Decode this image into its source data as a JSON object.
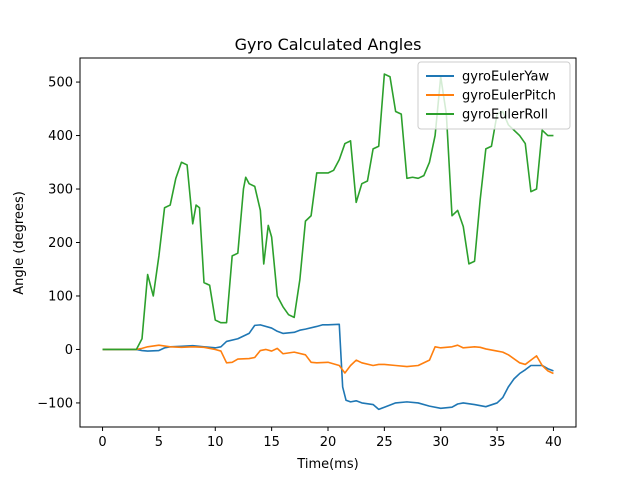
{
  "chart_data": {
    "type": "line",
    "title": "Gyro Calculated Angles",
    "xlabel": "Time(ms)",
    "ylabel": "Angle (degrees)",
    "xlim": [
      -2,
      42
    ],
    "ylim": [
      -145,
      545
    ],
    "xticks": [
      0,
      5,
      10,
      15,
      20,
      25,
      30,
      35,
      40
    ],
    "yticks": [
      -100,
      0,
      100,
      200,
      300,
      400,
      500
    ],
    "grid": false,
    "legend": "top-right",
    "series": [
      {
        "name": "gyroEulerYaw",
        "color": "#1f77b4",
        "points": [
          [
            0,
            0
          ],
          [
            3,
            0
          ],
          [
            3.5,
            -2
          ],
          [
            4,
            -3
          ],
          [
            5,
            -2
          ],
          [
            5.5,
            3
          ],
          [
            6,
            5
          ],
          [
            7,
            6
          ],
          [
            8,
            7
          ],
          [
            9,
            5
          ],
          [
            10,
            3
          ],
          [
            10.5,
            5
          ],
          [
            11,
            15
          ],
          [
            12,
            20
          ],
          [
            13,
            30
          ],
          [
            13.5,
            45
          ],
          [
            14,
            46
          ],
          [
            15,
            40
          ],
          [
            15.5,
            34
          ],
          [
            16,
            30
          ],
          [
            17,
            32
          ],
          [
            17.5,
            36
          ],
          [
            18,
            38
          ],
          [
            19,
            43
          ],
          [
            19.5,
            46
          ],
          [
            20,
            46
          ],
          [
            21,
            47
          ],
          [
            21.3,
            -70
          ],
          [
            21.6,
            -95
          ],
          [
            22,
            -98
          ],
          [
            22.5,
            -96
          ],
          [
            23,
            -100
          ],
          [
            24,
            -103
          ],
          [
            24.5,
            -112
          ],
          [
            25,
            -108
          ],
          [
            26,
            -100
          ],
          [
            27,
            -98
          ],
          [
            28,
            -100
          ],
          [
            29,
            -106
          ],
          [
            30,
            -110
          ],
          [
            31,
            -108
          ],
          [
            31.5,
            -102
          ],
          [
            32,
            -100
          ],
          [
            33,
            -103
          ],
          [
            34,
            -107
          ],
          [
            35,
            -100
          ],
          [
            35.5,
            -90
          ],
          [
            36,
            -70
          ],
          [
            36.5,
            -55
          ],
          [
            37,
            -45
          ],
          [
            37.5,
            -38
          ],
          [
            38,
            -30
          ],
          [
            39,
            -30
          ],
          [
            39.5,
            -36
          ],
          [
            40,
            -40
          ]
        ]
      },
      {
        "name": "gyroEulerPitch",
        "color": "#ff7f0e",
        "points": [
          [
            0,
            0
          ],
          [
            3,
            0
          ],
          [
            3.5,
            2
          ],
          [
            4,
            5
          ],
          [
            5,
            8
          ],
          [
            6,
            5
          ],
          [
            7,
            4
          ],
          [
            8,
            5
          ],
          [
            9,
            4
          ],
          [
            10,
            0
          ],
          [
            10.5,
            -3
          ],
          [
            11,
            -25
          ],
          [
            11.5,
            -24
          ],
          [
            12,
            -18
          ],
          [
            13,
            -17
          ],
          [
            13.5,
            -15
          ],
          [
            14,
            -2
          ],
          [
            14.5,
            0
          ],
          [
            15,
            -3
          ],
          [
            15.5,
            2
          ],
          [
            16,
            -8
          ],
          [
            17,
            -5
          ],
          [
            18,
            -10
          ],
          [
            18.5,
            -24
          ],
          [
            19,
            -25
          ],
          [
            20,
            -24
          ],
          [
            21,
            -30
          ],
          [
            21.5,
            -44
          ],
          [
            22,
            -30
          ],
          [
            22.5,
            -20
          ],
          [
            23,
            -25
          ],
          [
            24,
            -30
          ],
          [
            24.5,
            -28
          ],
          [
            25,
            -28
          ],
          [
            26,
            -30
          ],
          [
            27,
            -32
          ],
          [
            28,
            -30
          ],
          [
            29,
            -20
          ],
          [
            29.5,
            5
          ],
          [
            30,
            3
          ],
          [
            31,
            5
          ],
          [
            31.5,
            8
          ],
          [
            32,
            3
          ],
          [
            33,
            5
          ],
          [
            33.5,
            4
          ],
          [
            34,
            1
          ],
          [
            35,
            -3
          ],
          [
            35.5,
            -5
          ],
          [
            36,
            -10
          ],
          [
            37,
            -25
          ],
          [
            37.5,
            -28
          ],
          [
            38,
            -20
          ],
          [
            38.5,
            -12
          ],
          [
            39,
            -30
          ],
          [
            39.5,
            -40
          ],
          [
            40,
            -45
          ]
        ]
      },
      {
        "name": "gyroEulerRoll",
        "color": "#2ca02c",
        "points": [
          [
            0,
            0
          ],
          [
            3,
            0
          ],
          [
            3.5,
            20
          ],
          [
            4,
            140
          ],
          [
            4.5,
            100
          ],
          [
            5,
            175
          ],
          [
            5.5,
            265
          ],
          [
            6,
            270
          ],
          [
            6.5,
            320
          ],
          [
            7,
            350
          ],
          [
            7.5,
            345
          ],
          [
            8,
            235
          ],
          [
            8.3,
            270
          ],
          [
            8.6,
            265
          ],
          [
            9,
            125
          ],
          [
            9.5,
            120
          ],
          [
            10,
            55
          ],
          [
            10.5,
            50
          ],
          [
            11,
            50
          ],
          [
            11.5,
            175
          ],
          [
            12,
            180
          ],
          [
            12.5,
            300
          ],
          [
            12.7,
            322
          ],
          [
            13,
            310
          ],
          [
            13.5,
            305
          ],
          [
            14,
            260
          ],
          [
            14.3,
            160
          ],
          [
            14.7,
            232
          ],
          [
            15,
            210
          ],
          [
            15.5,
            100
          ],
          [
            16,
            80
          ],
          [
            16.5,
            65
          ],
          [
            17,
            60
          ],
          [
            17.5,
            130
          ],
          [
            18,
            240
          ],
          [
            18.5,
            250
          ],
          [
            19,
            330
          ],
          [
            19.5,
            330
          ],
          [
            20,
            330
          ],
          [
            20.5,
            335
          ],
          [
            21,
            355
          ],
          [
            21.5,
            385
          ],
          [
            22,
            390
          ],
          [
            22.5,
            275
          ],
          [
            23,
            310
          ],
          [
            23.5,
            315
          ],
          [
            24,
            375
          ],
          [
            24.5,
            380
          ],
          [
            25,
            515
          ],
          [
            25.5,
            510
          ],
          [
            26,
            445
          ],
          [
            26.5,
            440
          ],
          [
            27,
            320
          ],
          [
            27.5,
            322
          ],
          [
            28,
            320
          ],
          [
            28.5,
            325
          ],
          [
            29,
            350
          ],
          [
            29.5,
            400
          ],
          [
            30,
            510
          ],
          [
            30.5,
            440
          ],
          [
            31,
            250
          ],
          [
            31.5,
            260
          ],
          [
            32,
            230
          ],
          [
            32.5,
            160
          ],
          [
            33,
            165
          ],
          [
            33.5,
            280
          ],
          [
            34,
            375
          ],
          [
            34.5,
            380
          ],
          [
            35,
            440
          ],
          [
            35.5,
            445
          ],
          [
            36,
            420
          ],
          [
            37,
            400
          ],
          [
            37.5,
            385
          ],
          [
            38,
            295
          ],
          [
            38.5,
            300
          ],
          [
            39,
            410
          ],
          [
            39.5,
            400
          ],
          [
            40,
            400
          ]
        ]
      }
    ]
  }
}
